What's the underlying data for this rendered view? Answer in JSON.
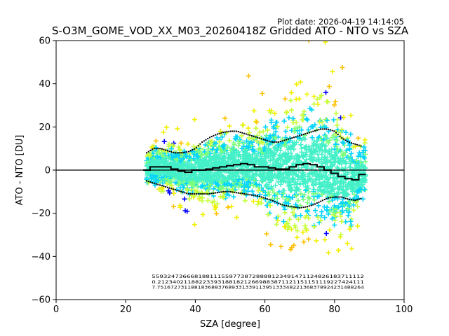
{
  "chart_data": {
    "type": "scatter",
    "plot_date": "Plot date: 2026-04-19 14:14:05",
    "title": "S-O3M_GOME_VOD_XX_M03_20260418Z Gridded ATO - NTO vs SZA",
    "xlabel": "SZA [degree]",
    "ylabel": "ATO - NTO [DU]",
    "xlim": [
      0,
      100
    ],
    "ylim": [
      -60,
      60
    ],
    "xticks": [
      0,
      20,
      40,
      60,
      80,
      100
    ],
    "yticks": [
      -60,
      -40,
      -20,
      0,
      20,
      40,
      60
    ],
    "xtick_labels": [
      "0",
      "20",
      "40",
      "60",
      "80",
      "100"
    ],
    "ytick_labels": [
      "−60",
      "−40",
      "−20",
      "0",
      "20",
      "40",
      "60"
    ],
    "marker": "+",
    "color_scale": [
      "#0000ff",
      "#00d4ff",
      "#44f0c8",
      "#7cff7c",
      "#c8ff3c",
      "#f0f000",
      "#ffc000"
    ],
    "zero_line": 0,
    "scatter_sza_range": [
      26,
      89
    ],
    "median": {
      "x": [
        26,
        28,
        30,
        32,
        34,
        36,
        38,
        40,
        42,
        44,
        46,
        48,
        50,
        52,
        54,
        56,
        58,
        60,
        62,
        64,
        66,
        68,
        70,
        72,
        74,
        76,
        78,
        80,
        82,
        84,
        86,
        88
      ],
      "y": [
        0,
        1.5,
        1.5,
        1.5,
        0.5,
        -0.5,
        -1,
        0,
        0,
        0.5,
        1,
        1.5,
        2,
        2.5,
        3,
        2.5,
        1.5,
        1.5,
        1,
        0.5,
        0.5,
        1.5,
        2.5,
        3,
        2.5,
        1.5,
        0,
        -1.5,
        -3,
        -4,
        -4.5,
        -2
      ]
    },
    "upper_band": {
      "x": [
        26,
        28,
        30,
        32,
        34,
        36,
        38,
        40,
        42,
        44,
        46,
        48,
        50,
        52,
        54,
        56,
        58,
        60,
        62,
        64,
        66,
        68,
        70,
        72,
        74,
        76,
        78,
        80,
        82,
        84,
        86,
        88
      ],
      "y": [
        8,
        10,
        10,
        9,
        8,
        8,
        8.5,
        10,
        13,
        15,
        16.5,
        17.5,
        18,
        18,
        17,
        16,
        15,
        14,
        13,
        13,
        14,
        15,
        16,
        17,
        18,
        19,
        19,
        18,
        15,
        13,
        12,
        11
      ]
    },
    "lower_band": {
      "x": [
        26,
        28,
        30,
        32,
        34,
        36,
        38,
        40,
        42,
        44,
        46,
        48,
        50,
        52,
        54,
        56,
        58,
        60,
        62,
        64,
        66,
        68,
        70,
        72,
        74,
        76,
        78,
        80,
        82,
        84,
        86,
        88
      ],
      "y": [
        -5,
        -6,
        -7,
        -8,
        -9,
        -10,
        -11,
        -11,
        -11,
        -11,
        -10.5,
        -10,
        -10,
        -10.5,
        -11,
        -11.5,
        -12,
        -13,
        -14,
        -15.5,
        -16.5,
        -17,
        -17.5,
        -17,
        -16,
        -14.5,
        -13,
        -12.5,
        -12.5,
        -13.5,
        -14,
        -13
      ]
    },
    "count_rows": [
      "5593247366681881115597738728888123491471124826183711112",
      "0.2123402118822339318818212669883871121151151119227424111",
      "7.7516727311881836883768933133911395133348221368378924231488264"
    ],
    "count_rows_y": [
      -50,
      -52.5,
      -55
    ]
  }
}
